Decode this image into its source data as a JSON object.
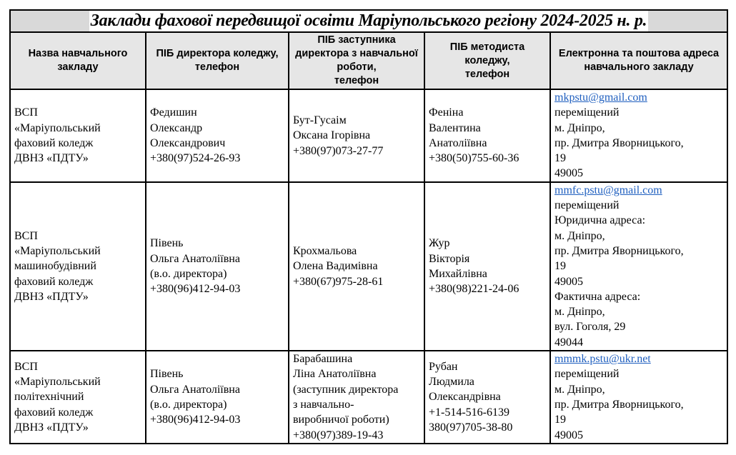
{
  "title": "Заклади фахової передвищої освіти Маріупольського регіону 2024-2025 н. р.",
  "headers": [
    "Назва навчального закладу",
    "ПІБ директора коледжу,\nтелефон",
    "ПІБ заступника директора з навчальної роботи,\nтелефон",
    "ПІБ методиста коледжу,\nтелефон",
    "Електронна та поштова адреса навчального закладу"
  ],
  "rows": [
    {
      "name": "ВСП\n«Маріупольський\nфаховий коледж\nДВНЗ «ПДТУ»",
      "director": "Федишин\nОлександр\nОлександрович\n+380(97)524-26-93",
      "deputy": "Бут-Гусаім\nОксана Ігорівна\n+380(97)073-27-77",
      "methodist": "Феніна\nВалентина\nАнатоліївна\n+380(50)755-60-36",
      "email": "mkpstu@gmail.com",
      "address": "переміщений\nм. Дніпро,\nпр. Дмитра Яворницького,\n19\n49005"
    },
    {
      "name": "ВСП\n«Маріупольський\nмашинобудівний\nфаховий коледж\nДВНЗ «ПДТУ»",
      "director": "Півень\nОльга Анатоліївна\n(в.о. директора)\n+380(96)412-94-03",
      "deputy": "Крохмальова\nОлена Вадимівна\n+380(67)975-28-61",
      "methodist": "Жур\nВікторія\nМихайлівна\n+380(98)221-24-06",
      "email": "mmfc.pstu@gmail.com",
      "address": "переміщений\nЮридична адреса:\nм. Дніпро,\nпр. Дмитра Яворницького,\n19\n49005\nФактична адреса:\nм. Дніпро,\nвул. Гоголя, 29\n49044"
    },
    {
      "name": "ВСП\n«Маріупольський\nполітехнічний\nфаховий коледж\nДВНЗ «ПДТУ»",
      "director": "Півень\nОльга Анатоліївна\n(в.о. директора)\n+380(96)412-94-03",
      "deputy": "Барабашина\nЛіна Анатоліївна\n(заступник директора\nз навчально-\nвиробничої роботи)\n+380(97)389-19-43",
      "methodist": "Рубан\nЛюдмила\nОлександрівна\n+1-514-516-6139\n380(97)705-38-80",
      "email": "mmmk.pstu@ukr.net",
      "address": "переміщений\nм. Дніпро,\nпр. Дмитра Яворницького,\n19\n49005"
    }
  ],
  "colors": {
    "header_bg": "#e6e6e6",
    "title_bg": "#d9d9d9",
    "link": "#1f5fbf"
  }
}
